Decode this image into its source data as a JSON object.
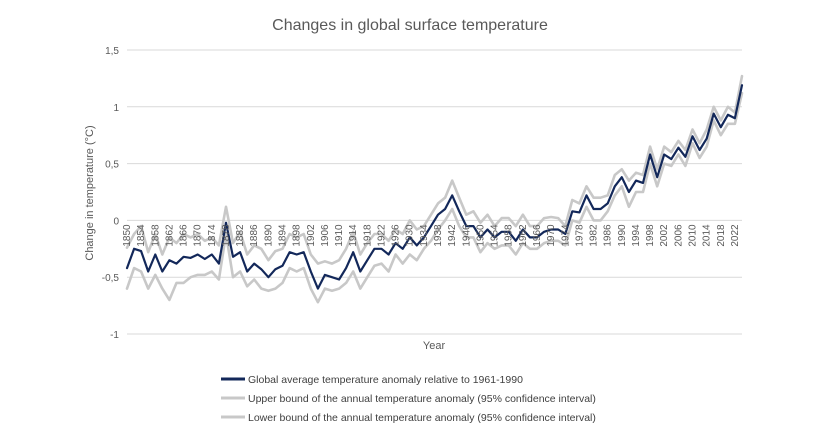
{
  "chart_data": {
    "type": "line",
    "title": "Changes in global surface temperature",
    "xlabel": "Year",
    "ylabel": "Change in temperature (°C)",
    "ylim": [
      -1,
      1.5
    ],
    "y_ticks": [
      -1,
      -0.5,
      0,
      0.5,
      1,
      1.5
    ],
    "y_tick_labels": [
      "-1",
      "-0,5",
      "0",
      "0,5",
      "1",
      "1,5"
    ],
    "x_tick_labels": [
      "1850",
      "1854",
      "1858",
      "1862",
      "1866",
      "1870",
      "1874",
      "1878",
      "1882",
      "1886",
      "1890",
      "1894",
      "1898",
      "1902",
      "1906",
      "1910",
      "1914",
      "1918",
      "1922",
      "1926",
      "1930",
      "1934",
      "1938",
      "1942",
      "1946",
      "1950",
      "1954",
      "1958",
      "1962",
      "1966",
      "1970",
      "1974",
      "1978",
      "1982",
      "1986",
      "1990",
      "1994",
      "1998",
      "2002",
      "2006",
      "2010",
      "2014",
      "2018",
      "2022"
    ],
    "x_tick_start": 1850,
    "x_tick_step": 4,
    "grid": "horizontal",
    "legend_position": "bottom",
    "series": [
      {
        "name": "Upper bound of the annual temperature anomaly (95% confidence interval)",
        "color": "#c8c8c8",
        "x": [
          1850,
          1852,
          1854,
          1856,
          1858,
          1860,
          1862,
          1864,
          1866,
          1868,
          1870,
          1872,
          1874,
          1876,
          1878,
          1880,
          1882,
          1884,
          1886,
          1888,
          1890,
          1892,
          1894,
          1896,
          1898,
          1900,
          1902,
          1904,
          1906,
          1908,
          1910,
          1912,
          1914,
          1916,
          1918,
          1920,
          1922,
          1924,
          1926,
          1928,
          1930,
          1932,
          1934,
          1936,
          1938,
          1940,
          1942,
          1944,
          1946,
          1948,
          1950,
          1952,
          1954,
          1956,
          1958,
          1960,
          1962,
          1964,
          1966,
          1968,
          1970,
          1972,
          1974,
          1976,
          1978,
          1980,
          1982,
          1984,
          1986,
          1988,
          1990,
          1992,
          1994,
          1996,
          1998,
          2000,
          2002,
          2004,
          2006,
          2008,
          2010,
          2012,
          2014,
          2016,
          2018,
          2020,
          2022,
          2024
        ],
        "values": [
          -0.24,
          -0.12,
          -0.05,
          -0.28,
          -0.12,
          -0.3,
          -0.15,
          -0.2,
          -0.12,
          -0.15,
          -0.12,
          -0.18,
          -0.15,
          -0.22,
          0.12,
          -0.2,
          -0.1,
          -0.3,
          -0.22,
          -0.25,
          -0.35,
          -0.27,
          -0.25,
          -0.12,
          -0.15,
          -0.12,
          -0.3,
          -0.38,
          -0.36,
          -0.38,
          -0.35,
          -0.25,
          -0.1,
          -0.3,
          -0.2,
          -0.12,
          -0.12,
          -0.18,
          -0.08,
          -0.12,
          0.0,
          -0.08,
          -0.05,
          0.05,
          0.15,
          0.2,
          0.35,
          0.2,
          0.05,
          0.08,
          -0.02,
          0.05,
          -0.05,
          0.02,
          0.02,
          -0.05,
          0.05,
          -0.05,
          -0.05,
          0.02,
          0.03,
          0.02,
          -0.05,
          0.18,
          0.15,
          0.3,
          0.2,
          0.2,
          0.22,
          0.4,
          0.45,
          0.35,
          0.42,
          0.4,
          0.65,
          0.45,
          0.65,
          0.6,
          0.7,
          0.62,
          0.8,
          0.68,
          0.8,
          1.0,
          0.88,
          1.0,
          0.95,
          1.27
        ]
      },
      {
        "name": "Lower bound of the annual temperature anomaly (95% confidence interval)",
        "color": "#c8c8c8",
        "x": [
          1850,
          1852,
          1854,
          1856,
          1858,
          1860,
          1862,
          1864,
          1866,
          1868,
          1870,
          1872,
          1874,
          1876,
          1878,
          1880,
          1882,
          1884,
          1886,
          1888,
          1890,
          1892,
          1894,
          1896,
          1898,
          1900,
          1902,
          1904,
          1906,
          1908,
          1910,
          1912,
          1914,
          1916,
          1918,
          1920,
          1922,
          1924,
          1926,
          1928,
          1930,
          1932,
          1934,
          1936,
          1938,
          1940,
          1942,
          1944,
          1946,
          1948,
          1950,
          1952,
          1954,
          1956,
          1958,
          1960,
          1962,
          1964,
          1966,
          1968,
          1970,
          1972,
          1974,
          1976,
          1978,
          1980,
          1982,
          1984,
          1986,
          1988,
          1990,
          1992,
          1994,
          1996,
          1998,
          2000,
          2002,
          2004,
          2006,
          2008,
          2010,
          2012,
          2014,
          2016,
          2018,
          2020,
          2022,
          2024
        ],
        "values": [
          -0.6,
          -0.42,
          -0.45,
          -0.6,
          -0.48,
          -0.6,
          -0.7,
          -0.55,
          -0.55,
          -0.5,
          -0.48,
          -0.48,
          -0.45,
          -0.52,
          -0.12,
          -0.5,
          -0.45,
          -0.58,
          -0.52,
          -0.6,
          -0.62,
          -0.6,
          -0.55,
          -0.42,
          -0.45,
          -0.42,
          -0.6,
          -0.72,
          -0.6,
          -0.62,
          -0.6,
          -0.55,
          -0.45,
          -0.6,
          -0.5,
          -0.4,
          -0.38,
          -0.45,
          -0.3,
          -0.38,
          -0.3,
          -0.35,
          -0.25,
          -0.18,
          -0.08,
          0.0,
          0.1,
          -0.05,
          -0.15,
          -0.15,
          -0.28,
          -0.2,
          -0.25,
          -0.22,
          -0.22,
          -0.3,
          -0.2,
          -0.25,
          -0.25,
          -0.2,
          -0.18,
          -0.18,
          -0.22,
          0.0,
          -0.02,
          0.12,
          0.0,
          0.0,
          0.08,
          0.22,
          0.3,
          0.12,
          0.25,
          0.25,
          0.5,
          0.3,
          0.5,
          0.48,
          0.58,
          0.48,
          0.68,
          0.55,
          0.65,
          0.88,
          0.75,
          0.85,
          0.85,
          1.12
        ]
      },
      {
        "name": "Global average temperature anomaly relative to 1961-1990",
        "color": "#13285a",
        "x": [
          1850,
          1852,
          1854,
          1856,
          1858,
          1860,
          1862,
          1864,
          1866,
          1868,
          1870,
          1872,
          1874,
          1876,
          1878,
          1880,
          1882,
          1884,
          1886,
          1888,
          1890,
          1892,
          1894,
          1896,
          1898,
          1900,
          1902,
          1904,
          1906,
          1908,
          1910,
          1912,
          1914,
          1916,
          1918,
          1920,
          1922,
          1924,
          1926,
          1928,
          1930,
          1932,
          1934,
          1936,
          1938,
          1940,
          1942,
          1944,
          1946,
          1948,
          1950,
          1952,
          1954,
          1956,
          1958,
          1960,
          1962,
          1964,
          1966,
          1968,
          1970,
          1972,
          1974,
          1976,
          1978,
          1980,
          1982,
          1984,
          1986,
          1988,
          1990,
          1992,
          1994,
          1996,
          1998,
          2000,
          2002,
          2004,
          2006,
          2008,
          2010,
          2012,
          2014,
          2016,
          2018,
          2020,
          2022,
          2024
        ],
        "values": [
          -0.42,
          -0.25,
          -0.27,
          -0.45,
          -0.3,
          -0.45,
          -0.35,
          -0.38,
          -0.32,
          -0.33,
          -0.3,
          -0.34,
          -0.3,
          -0.38,
          -0.02,
          -0.32,
          -0.28,
          -0.45,
          -0.38,
          -0.43,
          -0.5,
          -0.43,
          -0.4,
          -0.28,
          -0.3,
          -0.28,
          -0.45,
          -0.6,
          -0.48,
          -0.5,
          -0.52,
          -0.42,
          -0.28,
          -0.45,
          -0.35,
          -0.25,
          -0.25,
          -0.3,
          -0.2,
          -0.25,
          -0.15,
          -0.22,
          -0.15,
          -0.05,
          0.05,
          0.1,
          0.22,
          0.08,
          -0.05,
          -0.05,
          -0.15,
          -0.08,
          -0.15,
          -0.1,
          -0.1,
          -0.18,
          -0.08,
          -0.15,
          -0.15,
          -0.1,
          -0.08,
          -0.08,
          -0.12,
          0.08,
          0.07,
          0.22,
          0.1,
          0.1,
          0.15,
          0.3,
          0.38,
          0.25,
          0.35,
          0.33,
          0.58,
          0.38,
          0.58,
          0.54,
          0.64,
          0.56,
          0.74,
          0.62,
          0.72,
          0.94,
          0.82,
          0.93,
          0.9,
          1.19
        ]
      }
    ]
  }
}
